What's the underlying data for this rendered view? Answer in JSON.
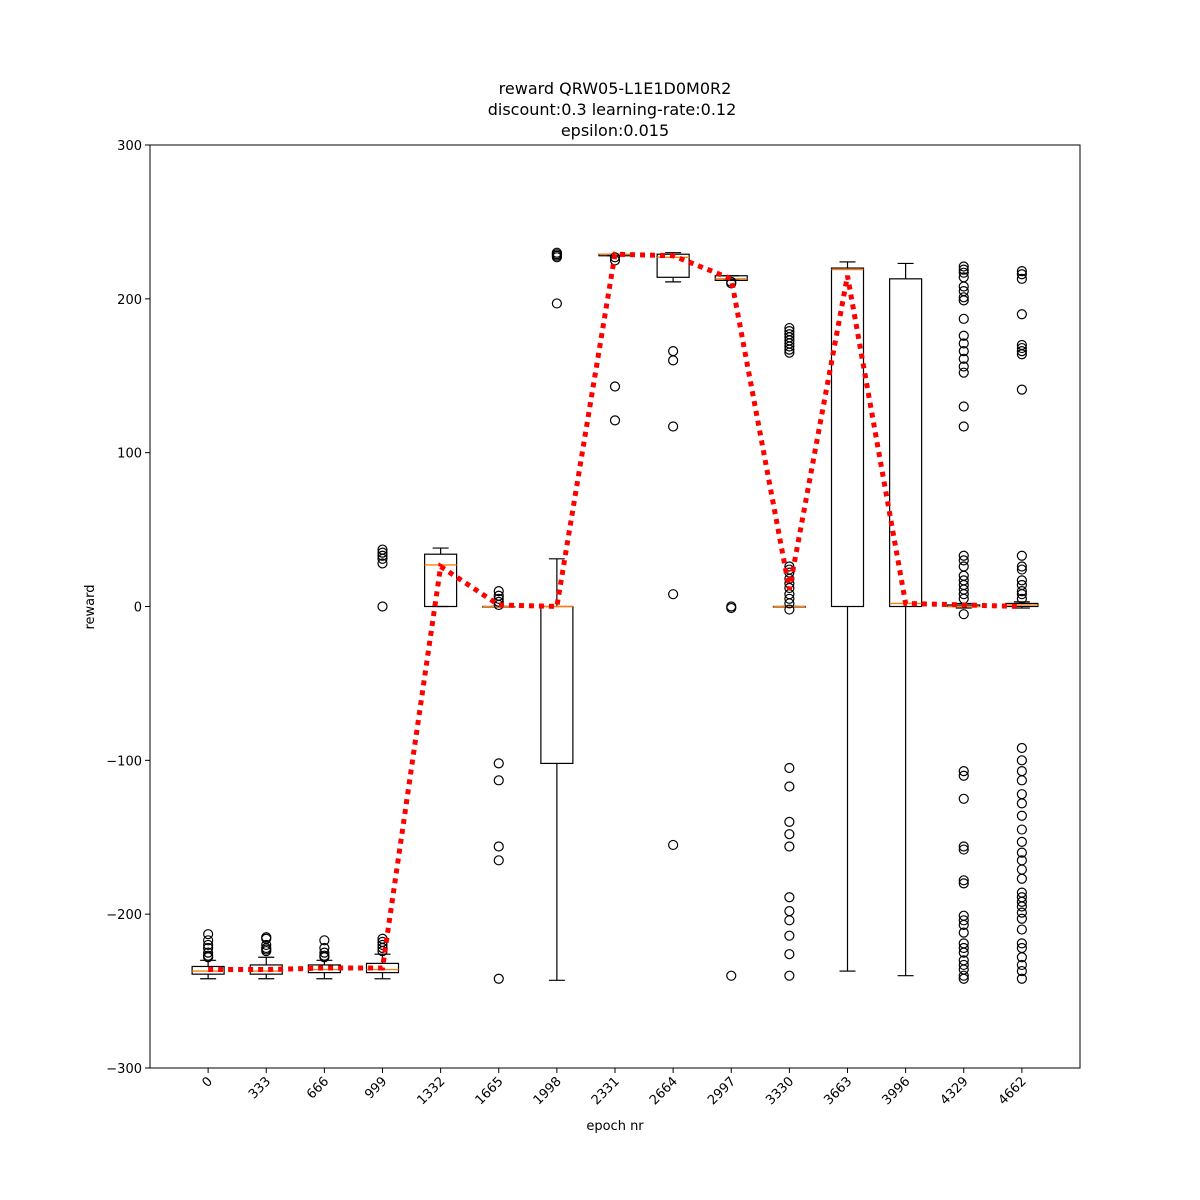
{
  "chart_data": {
    "type": "box",
    "title_lines": [
      "reward QRW05-L1E1D0M0R2",
      "discount:0.3 learning-rate:0.12",
      "epsilon:0.015"
    ],
    "xlabel": "epoch nr",
    "ylabel": "reward",
    "ylim": [
      -300,
      300
    ],
    "yticks": [
      -300,
      -200,
      -100,
      0,
      100,
      200,
      300
    ],
    "categories": [
      "0",
      "333",
      "666",
      "999",
      "1332",
      "1665",
      "1998",
      "2331",
      "2664",
      "2997",
      "3330",
      "3663",
      "3996",
      "4329",
      "4662"
    ],
    "boxes": [
      {
        "whislo": -242,
        "q1": -239,
        "med": -237,
        "q3": -234,
        "whishi": -230,
        "fliers": [
          -213,
          -217,
          -220,
          -222,
          -225,
          -227,
          -228
        ]
      },
      {
        "whislo": -242,
        "q1": -239,
        "med": -237,
        "q3": -233,
        "whishi": -228,
        "fliers": [
          -215,
          -216,
          -220,
          -222,
          -223,
          -224
        ]
      },
      {
        "whislo": -242,
        "q1": -238,
        "med": -236,
        "q3": -233,
        "whishi": -230,
        "fliers": [
          -217,
          -222,
          -225,
          -227,
          -228
        ]
      },
      {
        "whislo": -242,
        "q1": -238,
        "med": -236,
        "q3": -232,
        "whishi": -226,
        "fliers": [
          -216,
          -218,
          -220,
          -222,
          -224,
          0,
          28,
          31,
          33,
          35,
          37
        ]
      },
      {
        "whislo": 0,
        "q1": 0,
        "med": 27,
        "q3": 34,
        "whishi": 38,
        "fliers": []
      },
      {
        "whislo": 0,
        "q1": 0,
        "med": 0,
        "q3": 0,
        "whishi": 0,
        "fliers": [
          10,
          7,
          5,
          3,
          1,
          -102,
          -113,
          -156,
          -165,
          -242
        ]
      },
      {
        "whislo": -243,
        "q1": -102,
        "med": 0,
        "q3": 0,
        "whishi": 31,
        "fliers": [
          197,
          227,
          228,
          229,
          230
        ]
      },
      {
        "whislo": 228,
        "q1": 228,
        "med": 229,
        "q3": 229,
        "whishi": 229,
        "fliers": [
          227,
          225,
          143,
          121
        ]
      },
      {
        "whislo": 211,
        "q1": 214,
        "med": 227,
        "q3": 229,
        "whishi": 230,
        "fliers": [
          166,
          160,
          117,
          8,
          -155
        ]
      },
      {
        "whislo": 212,
        "q1": 212,
        "med": 213,
        "q3": 215,
        "whishi": 215,
        "fliers": [
          211,
          210,
          0,
          -1,
          -240
        ]
      },
      {
        "whislo": 0,
        "q1": 0,
        "med": 0,
        "q3": 0,
        "whishi": 0,
        "fliers": [
          181,
          179,
          177,
          175,
          173,
          171,
          169,
          167,
          165,
          26,
          24,
          22,
          18,
          15,
          12,
          8,
          5,
          2,
          -2,
          -105,
          -117,
          -140,
          -148,
          -156,
          -189,
          -198,
          -204,
          -214,
          -226,
          -240
        ]
      },
      {
        "whislo": -237,
        "q1": 0,
        "med": 219,
        "q3": 220,
        "whishi": 224,
        "fliers": []
      },
      {
        "whislo": -240,
        "q1": 0,
        "med": 2,
        "q3": 213,
        "whishi": 223,
        "fliers": []
      },
      {
        "whislo": -1,
        "q1": 0,
        "med": 0,
        "q3": 1,
        "whishi": 2,
        "fliers": [
          221,
          219,
          217,
          214,
          208,
          205,
          201,
          199,
          187,
          176,
          171,
          166,
          161,
          156,
          152,
          130,
          117,
          33,
          30,
          26,
          20,
          17,
          14,
          11,
          8,
          5,
          -5,
          -107,
          -110,
          -125,
          -156,
          -158,
          -178,
          -180,
          -201,
          -204,
          -207,
          -212,
          -219,
          -222,
          -225,
          -230,
          -233,
          -236,
          -240,
          -242
        ]
      },
      {
        "whislo": -1,
        "q1": 0,
        "med": 1,
        "q3": 2,
        "whishi": 3,
        "fliers": [
          218,
          216,
          213,
          190,
          170,
          168,
          166,
          164,
          141,
          33,
          26,
          24,
          17,
          14,
          10,
          8,
          5,
          -92,
          -100,
          -107,
          -113,
          -122,
          -128,
          -136,
          -145,
          -153,
          -160,
          -165,
          -171,
          -177,
          -186,
          -189,
          -192,
          -195,
          -199,
          -203,
          -210,
          -219,
          -222,
          -228,
          -233,
          -237,
          -242
        ]
      }
    ],
    "mean_line": {
      "style": "dotted",
      "color": "#ff0000",
      "values": [
        -236,
        -236,
        -235,
        -235,
        26,
        1,
        0,
        229,
        228,
        213,
        11,
        215,
        2,
        1,
        0
      ]
    },
    "colors": {
      "box": "#000000",
      "median": "#ff7f0e",
      "flier": "#000000"
    }
  }
}
